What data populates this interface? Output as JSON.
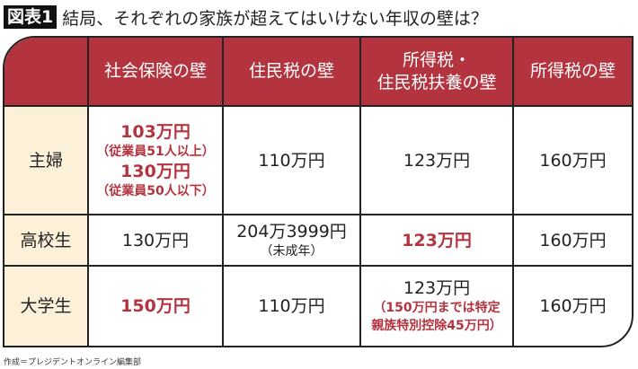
{
  "title": {
    "badge": "図表1",
    "text": "結局、それぞれの家族が超えてはいけない年収の壁は？"
  },
  "headers": [
    "",
    "社会保険の壁",
    "住民税の壁",
    "所得税・\n住民税扶養の壁",
    "所得税の壁"
  ],
  "rows": [
    {
      "label": "主婦",
      "social": {
        "a": "103万円",
        "a_note": "（従業員51人以上）",
        "b": "130万円",
        "b_note": "（従業員50人以下）"
      },
      "resident": "110万円",
      "dependent": "123万円",
      "income": "160万円"
    },
    {
      "label": "高校生",
      "social": "130万円",
      "resident": "204万3999円",
      "resident_note": "（未成年）",
      "dependent": "123万円",
      "income": "160万円"
    },
    {
      "label": "大学生",
      "social": "150万円",
      "resident": "110万円",
      "dependent": "123万円",
      "dependent_note1": "（150万円までは特定",
      "dependent_note2": "親族特別控除45万円）",
      "income": "160万円"
    }
  ],
  "colors": {
    "header": "#b3343f",
    "accent": "#b3343f",
    "row_header": "#fcf0d8"
  },
  "credit": "作成＝プレジデントオンライン編集部"
}
